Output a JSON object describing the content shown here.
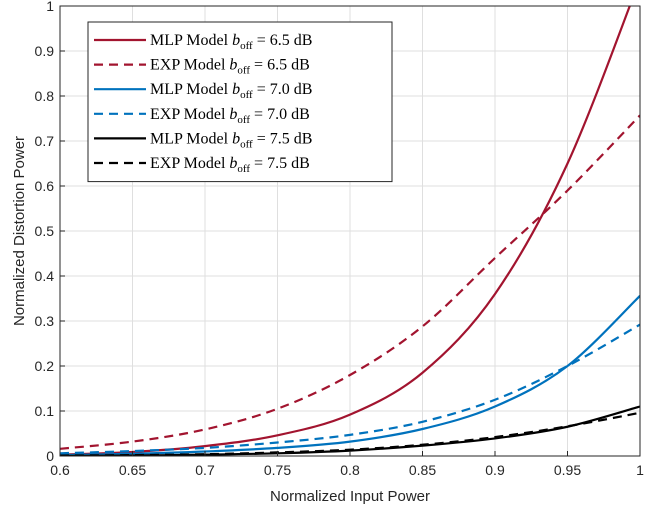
{
  "chart_data": {
    "type": "line",
    "title": "",
    "xlabel": "Normalized Input Power",
    "ylabel": "Normalized Distortion Power",
    "xlim": [
      0.6,
      1.0
    ],
    "ylim": [
      0,
      1.0
    ],
    "xticks": [
      "0.6",
      "0.65",
      "0.7",
      "0.75",
      "0.8",
      "0.85",
      "0.9",
      "0.95",
      "1"
    ],
    "yticks": [
      "0",
      "0.1",
      "0.2",
      "0.3",
      "0.4",
      "0.5",
      "0.6",
      "0.7",
      "0.8",
      "0.9",
      "1"
    ],
    "grid": true,
    "legend_position": "top-left",
    "x": [
      0.6,
      0.65,
      0.7,
      0.75,
      0.8,
      0.85,
      0.9,
      0.95,
      1.0
    ],
    "series": [
      {
        "name": "MLP Model",
        "offset": "6.5",
        "color": "#a2142f",
        "style": "solid",
        "values": [
          0.003,
          0.009,
          0.022,
          0.046,
          0.092,
          0.185,
          0.36,
          0.65,
          1.06
        ]
      },
      {
        "name": "EXP Model",
        "offset": "6.5",
        "color": "#a2142f",
        "style": "dashed",
        "values": [
          0.016,
          0.032,
          0.059,
          0.105,
          0.18,
          0.288,
          0.44,
          0.59,
          0.757
        ]
      },
      {
        "name": "MLP Model",
        "offset": "7.0",
        "color": "#0072bd",
        "style": "solid",
        "values": [
          0.002,
          0.005,
          0.01,
          0.018,
          0.032,
          0.06,
          0.11,
          0.2,
          0.356
        ]
      },
      {
        "name": "EXP Model",
        "offset": "7.0",
        "color": "#0072bd",
        "style": "dashed",
        "values": [
          0.006,
          0.011,
          0.018,
          0.03,
          0.047,
          0.076,
          0.125,
          0.2,
          0.292
        ]
      },
      {
        "name": "MLP Model",
        "offset": "7.5",
        "color": "#000000",
        "style": "solid",
        "values": [
          0.0,
          0.001,
          0.003,
          0.006,
          0.012,
          0.023,
          0.039,
          0.065,
          0.11
        ]
      },
      {
        "name": "EXP Model",
        "offset": "7.5",
        "color": "#000000",
        "style": "dashed",
        "values": [
          0.001,
          0.002,
          0.004,
          0.008,
          0.014,
          0.025,
          0.042,
          0.066,
          0.096
        ]
      }
    ],
    "legend_math": {
      "var": "b",
      "sub": "off",
      "eq": " = ",
      "unit": "dB"
    }
  }
}
